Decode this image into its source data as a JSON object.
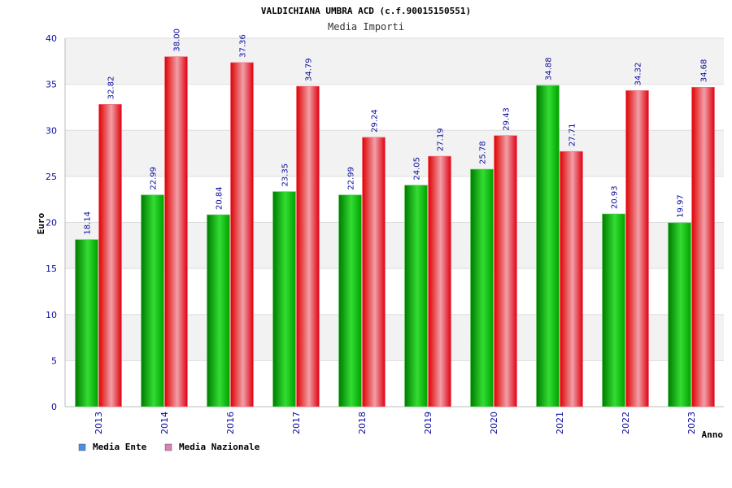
{
  "colors": {
    "ente_dark": "#007a00",
    "ente_light": "#33dd33",
    "naz_dark": "#e00000",
    "naz_light": "#f0a0a8",
    "legend_ente": "#4a90e2",
    "legend_naz": "#e080b0",
    "band": "#f2f2f2",
    "grid": "#dddddd",
    "text": "#0a0aa0"
  },
  "chart_data": {
    "type": "bar",
    "title": "VALDICHIANA UMBRA ACD (c.f.90015150551)",
    "subtitle": "Media Importi",
    "xlabel": "Anno",
    "ylabel": "Euro",
    "ylim": [
      0,
      40
    ],
    "yticks": [
      "0",
      "5",
      "10",
      "15",
      "20",
      "25",
      "30",
      "35",
      "40"
    ],
    "grid": true,
    "legend_position": "bottom-left",
    "categories": [
      "2013",
      "2014",
      "2016",
      "2017",
      "2018",
      "2019",
      "2020",
      "2021",
      "2022",
      "2023"
    ],
    "series": [
      {
        "name": "Media Ente",
        "values": [
          18.14,
          22.99,
          20.84,
          23.35,
          22.99,
          24.05,
          25.78,
          34.88,
          20.93,
          19.97
        ],
        "labels": [
          "18.14",
          "22.99",
          "20.84",
          "23.35",
          "22.99",
          "24.05",
          "25.78",
          "34.88",
          "20.93",
          "19.97"
        ]
      },
      {
        "name": "Media Nazionale",
        "values": [
          32.82,
          38.0,
          37.36,
          34.79,
          29.24,
          27.19,
          29.43,
          27.71,
          34.32,
          34.68
        ],
        "labels": [
          "32.82",
          "38.00",
          "37.36",
          "34.79",
          "29.24",
          "27.19",
          "29.43",
          "27.71",
          "34.32",
          "34.68"
        ]
      }
    ]
  }
}
